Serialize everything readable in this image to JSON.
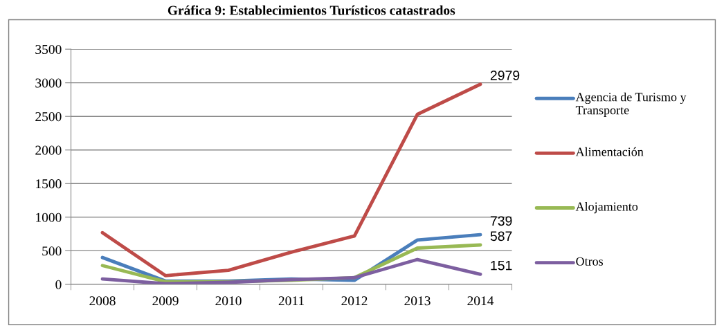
{
  "chart_data": {
    "type": "line",
    "title": "Gráfica 9: Establecimientos Turísticos catastrados",
    "categories": [
      "2008",
      "2009",
      "2010",
      "2011",
      "2012",
      "2013",
      "2014"
    ],
    "series": [
      {
        "name": "Agencia de Turismo y Transporte",
        "color": "#4a7ebb",
        "values": [
          400,
          50,
          50,
          80,
          60,
          660,
          739
        ],
        "value_labels": [
          null,
          null,
          null,
          null,
          null,
          null,
          "739"
        ]
      },
      {
        "name": "Alimentación",
        "color": "#be4b48",
        "values": [
          770,
          130,
          210,
          480,
          720,
          2530,
          2979
        ],
        "value_labels": [
          null,
          null,
          null,
          null,
          null,
          null,
          "2979"
        ]
      },
      {
        "name": "Alojamiento",
        "color": "#98b954",
        "values": [
          280,
          40,
          40,
          60,
          100,
          540,
          587
        ],
        "value_labels": [
          null,
          null,
          null,
          null,
          null,
          null,
          "587"
        ]
      },
      {
        "name": "Otros",
        "color": "#7d5fa0",
        "values": [
          80,
          10,
          30,
          70,
          100,
          370,
          151
        ],
        "value_labels": [
          null,
          null,
          null,
          null,
          null,
          null,
          "151"
        ]
      }
    ],
    "ylim": [
      0,
      3500
    ],
    "yticks": [
      0,
      500,
      1000,
      1500,
      2000,
      2500,
      3000,
      3500
    ],
    "grid": "y",
    "legend": "right",
    "marker": "none",
    "line_style": "solid"
  }
}
